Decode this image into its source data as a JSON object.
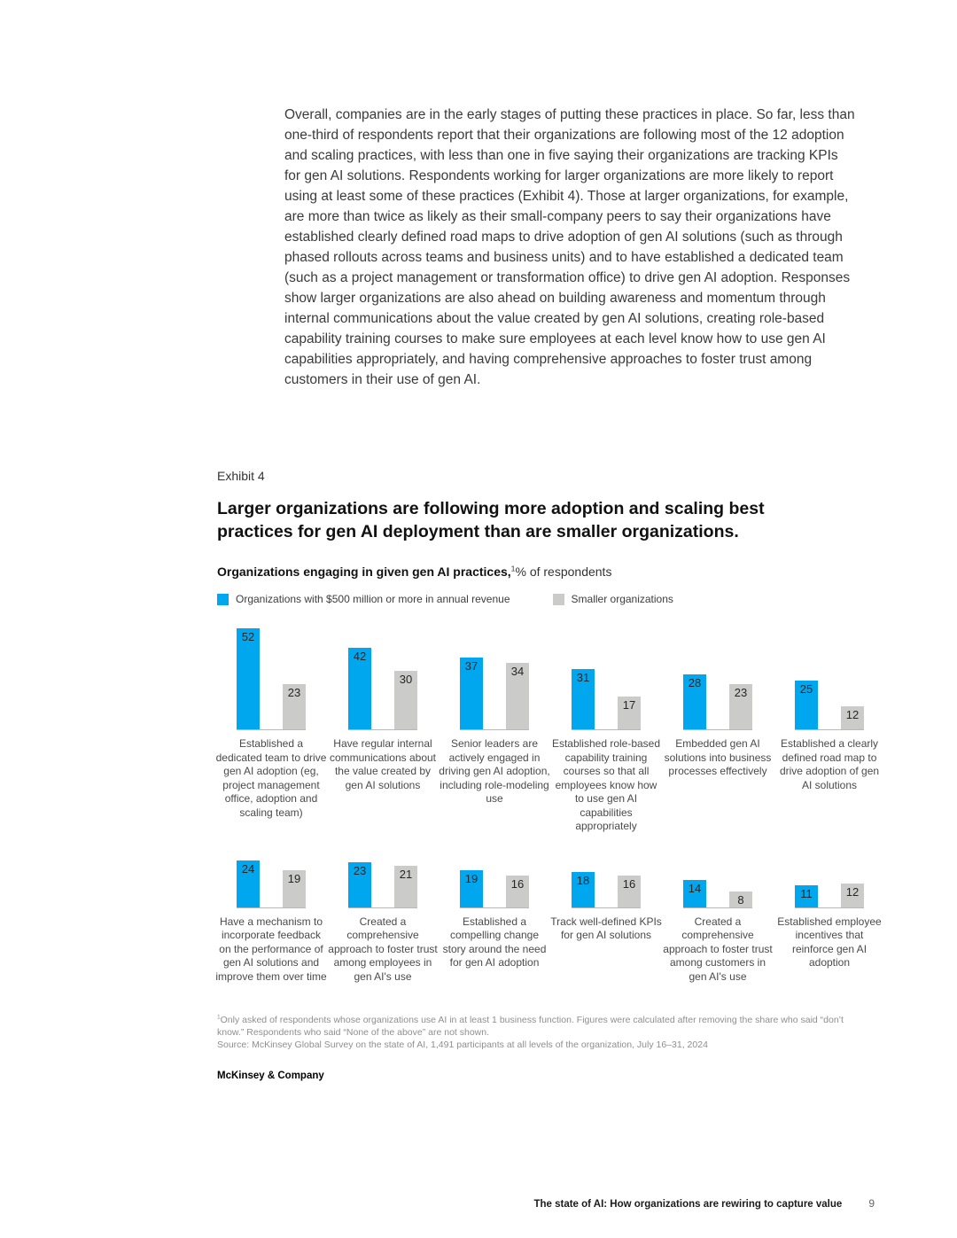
{
  "page": {
    "paragraph": "Overall, companies are in the early stages of putting these practices in place. So far, less than one-third of respondents report that their organizations are following most of the 12 adoption and scaling practices, with less than one in five saying their organizations are tracking KPIs for gen AI solutions. Respondents working for larger organizations are more likely to report using at least some of these practices (Exhibit 4). Those at larger organizations, for example, are more than twice as likely as their small-company peers to say their organizations have established clearly defined road maps to drive adoption of gen AI solutions (such as through phased rollouts across teams and business units) and to have established a dedicated team (such as a project management or transformation office) to drive gen AI adoption. Responses show larger organizations are also ahead on building awareness and momentum through internal communications about the value created by gen AI solutions, creating role-based capability training courses to make sure employees at each level know how to use gen AI capabilities appropriately, and having comprehensive approaches to foster trust among customers in their use of gen AI."
  },
  "exhibit": {
    "label": "Exhibit 4",
    "title": "Larger organizations are following more adoption and scaling best practices for gen AI deployment than are smaller organizations.",
    "subtitle_bold": "Organizations engaging in given gen AI practices,",
    "subtitle_sup": "1",
    "subtitle_rest": "% of respondents"
  },
  "legend": [
    {
      "label": "Organizations with $500 million or more in annual revenue",
      "color": "#00a7ee"
    },
    {
      "label": "Smaller organizations",
      "color": "#cbcbc9"
    }
  ],
  "chart_data": {
    "type": "bar",
    "title": "Organizations engaging in given gen AI practices, % of respondents",
    "ylim": [
      0,
      60
    ],
    "grid": false,
    "legend_position": "top",
    "categories": [
      "Established a dedicated team to drive gen AI adoption (eg, project management office, adoption and scaling team)",
      "Have regular internal communications about the value created by gen AI solutions",
      "Senior leaders are actively engaged in driving gen AI adoption, including role-modeling use",
      "Established role-based capability training courses so that all employees know how to use gen AI capabilities appropriately",
      "Embedded gen AI solutions into business processes effectively",
      "Established a clearly defined road map to drive adoption of gen AI solutions",
      "Have a mechanism to incorporate feedback on the performance of gen AI solutions and improve them over time",
      "Created a comprehensive approach to foster trust among employees in gen AI's use",
      "Established a compelling change story around the need for gen AI adoption",
      "Track well-defined KPIs for gen AI solutions",
      "Created a comprehensive approach to foster trust among customers in gen AI's use",
      "Established employee incentives that reinforce gen AI adoption"
    ],
    "series": [
      {
        "name": "Organizations with $500 million or more in annual revenue",
        "color": "#00a7ee",
        "values": [
          52,
          42,
          37,
          31,
          28,
          25,
          24,
          23,
          19,
          18,
          14,
          11
        ]
      },
      {
        "name": "Smaller organizations",
        "color": "#cbcbc9",
        "values": [
          23,
          30,
          34,
          17,
          23,
          12,
          19,
          21,
          16,
          16,
          8,
          12
        ]
      }
    ]
  },
  "footnote": {
    "sup": "1",
    "text": "Only asked of respondents whose organizations use AI in at least 1 business function. Figures were calculated after removing the share who said “don’t know.” Respondents who said “None of the above” are not shown.",
    "source": "Source: McKinsey Global Survey on the state of AI, 1,491 participants at all levels of the organization, July 16–31, 2024"
  },
  "brand": "McKinsey & Company",
  "footer": {
    "title": "The state of AI: How organizations are rewiring to capture value",
    "page": "9"
  }
}
